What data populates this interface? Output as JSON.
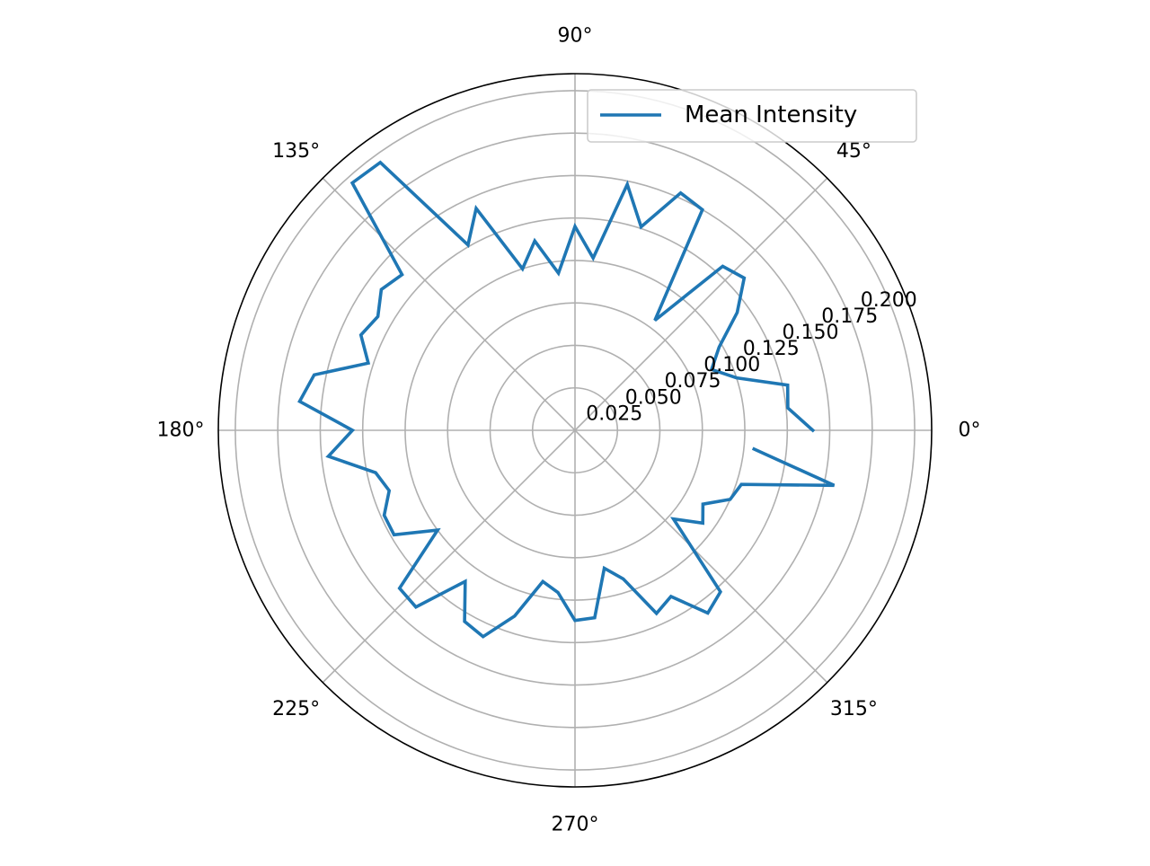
{
  "chart_data": {
    "type": "polar-line",
    "title": "",
    "series": [
      {
        "name": "Mean Intensity",
        "color": "#1f77b4",
        "theta_deg": [
          0,
          6,
          12,
          18,
          24,
          30,
          36,
          42,
          48,
          54,
          60,
          66,
          72,
          78,
          84,
          90,
          96,
          102,
          108,
          114,
          120,
          126,
          132,
          138,
          144,
          150,
          156,
          162,
          168,
          174,
          180,
          186,
          192,
          198,
          204,
          210,
          216,
          222,
          228,
          234,
          240,
          246,
          252,
          258,
          264,
          270,
          276,
          282,
          288,
          294,
          300,
          306,
          312,
          318,
          324,
          330,
          336,
          342,
          348,
          354
        ],
        "r": [
          0.14,
          0.126,
          0.128,
          0.1,
          0.088,
          0.098,
          0.118,
          0.134,
          0.13,
          0.08,
          0.15,
          0.153,
          0.126,
          0.148,
          0.102,
          0.12,
          0.093,
          0.114,
          0.1,
          0.143,
          0.126,
          0.195,
          0.196,
          0.137,
          0.141,
          0.134,
          0.138,
          0.128,
          0.157,
          0.163,
          0.131,
          0.146,
          0.12,
          0.115,
          0.123,
          0.123,
          0.1,
          0.139,
          0.14,
          0.11,
          0.13,
          0.133,
          0.115,
          0.091,
          0.096,
          0.112,
          0.111,
          0.083,
          0.092,
          0.118,
          0.113,
          0.133,
          0.128,
          0.078,
          0.093,
          0.087,
          0.1,
          0.103,
          0.156,
          0.106
        ]
      }
    ],
    "rlim": [
      0,
      0.21
    ],
    "rticks": [
      0.025,
      0.05,
      0.075,
      0.1,
      0.125,
      0.15,
      0.175,
      0.2
    ],
    "rtick_labels": [
      "0.025",
      "0.050",
      "0.075",
      "0.100",
      "0.125",
      "0.150",
      "0.175",
      "0.200"
    ],
    "angle_ticks_deg": [
      0,
      45,
      90,
      135,
      180,
      225,
      270,
      315
    ],
    "angle_tick_labels": [
      "0°",
      "45°",
      "90°",
      "135°",
      "180°",
      "225°",
      "270°",
      "315°"
    ],
    "grid": true,
    "legend": {
      "position": "upper-right",
      "entries": [
        "Mean Intensity"
      ]
    }
  }
}
